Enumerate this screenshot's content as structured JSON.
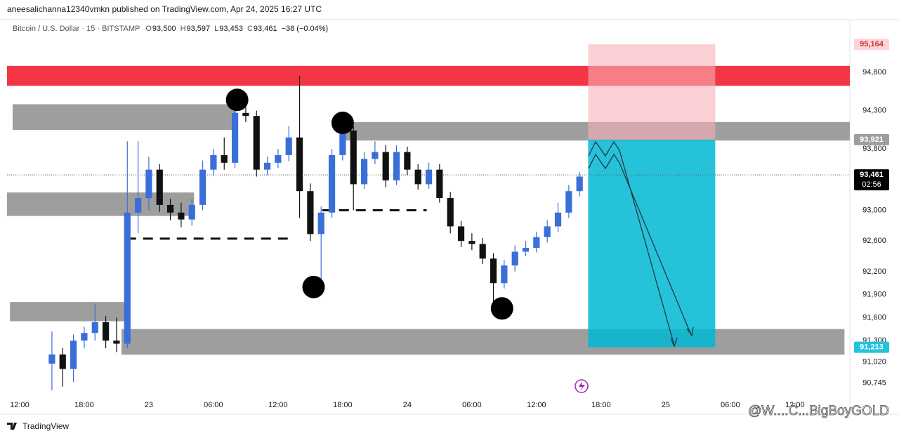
{
  "header": {
    "published": "aneesalichanna12340vmkn published on TradingView.com, Apr 24, 2025 16:27 UTC"
  },
  "footer": {
    "brand": "TradingView"
  },
  "watermark": "@W....C...BigBoyGOLD",
  "chart_data": {
    "type": "candlestick",
    "title": "Bitcoin / U.S. Dollar · 15 · BITSTAMP",
    "ohlc": [
      {
        "key": "O",
        "value": "93,500"
      },
      {
        "key": "H",
        "value": "93,597"
      },
      {
        "key": "L",
        "value": "93,453"
      },
      {
        "key": "C",
        "value": "93,461"
      }
    ],
    "change": "−38 (−0.04%)",
    "up_color": "#3a6fd8",
    "down_color": "#111111",
    "x": [
      3,
      4,
      5,
      6,
      7,
      8,
      9,
      10,
      11,
      12,
      13,
      14,
      15,
      16,
      17,
      18,
      19,
      20,
      21,
      22,
      23,
      24,
      25,
      26,
      27,
      28,
      29,
      30,
      31,
      32,
      33,
      34,
      35,
      36,
      37,
      38,
      39,
      40,
      41,
      42,
      43,
      44,
      45,
      46,
      47,
      48,
      49,
      50,
      51,
      52
    ],
    "open": [
      91000,
      91120,
      90930,
      91300,
      91400,
      91540,
      91300,
      91260,
      92970,
      93160,
      93530,
      93070,
      92970,
      92880,
      93070,
      93530,
      93720,
      93620,
      94270,
      94230,
      93530,
      93620,
      93720,
      93950,
      93250,
      92690,
      92970,
      93720,
      94040,
      93340,
      93670,
      93760,
      93390,
      93760,
      93530,
      93340,
      93530,
      93160,
      92790,
      92600,
      92560,
      92370,
      92050,
      92280,
      92460,
      92510,
      92650,
      92790,
      92970,
      93250
    ],
    "high": [
      91420,
      91200,
      91380,
      91480,
      91780,
      91620,
      91600,
      93900,
      93900,
      93700,
      93600,
      93150,
      93100,
      93150,
      93650,
      93800,
      93950,
      94450,
      94380,
      94300,
      93700,
      93800,
      94100,
      94750,
      93350,
      93050,
      93800,
      94150,
      94100,
      93760,
      93900,
      93850,
      93850,
      93830,
      93600,
      93620,
      93600,
      93240,
      92860,
      92700,
      92640,
      92440,
      92350,
      92540,
      92600,
      92720,
      92870,
      93100,
      93330,
      93500
    ],
    "low": [
      90650,
      90700,
      90760,
      91200,
      91300,
      91200,
      91150,
      91200,
      92700,
      93000,
      92980,
      92870,
      92780,
      92800,
      93000,
      93450,
      93530,
      93550,
      94150,
      93440,
      93460,
      93550,
      93640,
      92900,
      92600,
      92050,
      92900,
      93650,
      93000,
      93280,
      93600,
      93300,
      93330,
      93460,
      93270,
      93280,
      93100,
      92700,
      92520,
      92480,
      92300,
      91780,
      91980,
      92200,
      92400,
      92450,
      92580,
      92720,
      92900,
      93180
    ],
    "close": [
      91120,
      90930,
      91300,
      91400,
      91540,
      91300,
      91260,
      92970,
      93160,
      93530,
      93070,
      92970,
      92880,
      93070,
      93530,
      93720,
      93620,
      94270,
      94230,
      93530,
      93620,
      93720,
      93950,
      93250,
      92690,
      92970,
      93720,
      94040,
      93340,
      93670,
      93760,
      93390,
      93760,
      93530,
      93340,
      93530,
      93160,
      92790,
      92600,
      92560,
      92370,
      92050,
      92280,
      92460,
      92510,
      92650,
      92790,
      92970,
      93250,
      93440
    ],
    "xlim": [
      -1.17,
      77.1
    ],
    "xticks": [
      {
        "value": 0,
        "label": "12:00"
      },
      {
        "value": 6,
        "label": "18:00"
      },
      {
        "value": 12,
        "label": "23"
      },
      {
        "value": 18,
        "label": "06:00"
      },
      {
        "value": 24,
        "label": "12:00"
      },
      {
        "value": 30,
        "label": "18:00"
      },
      {
        "value": 36,
        "label": "24"
      },
      {
        "value": 42,
        "label": "06:00"
      },
      {
        "value": 48,
        "label": "12:00"
      },
      {
        "value": 54,
        "label": "18:00"
      },
      {
        "value": 60,
        "label": "25"
      },
      {
        "value": 66,
        "label": "06:00"
      },
      {
        "value": 72,
        "label": "12:00"
      }
    ],
    "ylim": [
      90569,
      95468
    ],
    "yticks": [
      {
        "value": 94800,
        "label": "94,800"
      },
      {
        "value": 94300,
        "label": "94,300"
      },
      {
        "value": 93800,
        "label": "93,800"
      },
      {
        "value": 93000,
        "label": "93,000"
      },
      {
        "value": 92600,
        "label": "92,600"
      },
      {
        "value": 92200,
        "label": "92,200"
      },
      {
        "value": 91900,
        "label": "91,900"
      },
      {
        "value": 91600,
        "label": "91,600"
      },
      {
        "value": 91300,
        "label": "91,300"
      },
      {
        "value": 91020,
        "label": "91,020"
      },
      {
        "value": 90745,
        "label": "90,745"
      }
    ],
    "grid": false,
    "zones": [
      {
        "x": [
          -1.17,
          77.1
        ],
        "y": [
          94624,
          94883
        ],
        "color": "#f23645"
      },
      {
        "x": [
          -0.65,
          20.1
        ],
        "y": [
          94049,
          94383
        ],
        "color": "#9e9e9e"
      },
      {
        "x": [
          30,
          77.1
        ],
        "y": [
          93910,
          94151
        ],
        "color": "#9e9e9e"
      },
      {
        "x": [
          -1.17,
          16.2
        ],
        "y": [
          92926,
          93232
        ],
        "color": "#9e9e9e"
      },
      {
        "x": [
          -0.9,
          9.8
        ],
        "y": [
          91553,
          91804
        ],
        "color": "#9e9e9e"
      },
      {
        "x": [
          9.46,
          76.6
        ],
        "y": [
          91117,
          91451
        ],
        "color": "#9e9e9e"
      },
      {
        "x": [
          52.8,
          64.6
        ],
        "y": [
          93921,
          95164
        ],
        "color": "rgba(248,175,182,0.6)"
      },
      {
        "x": [
          52.8,
          64.6
        ],
        "y": [
          91213,
          93921
        ],
        "color": "rgba(0,183,211,0.85)"
      }
    ],
    "levels": [
      {
        "x": [
          9.9,
          25.2
        ],
        "y": 92630
      },
      {
        "x": [
          28.1,
          37.8
        ],
        "y": 93000
      }
    ],
    "points": [
      {
        "x": 20.2,
        "y": 94440
      },
      {
        "x": 30,
        "y": 94140
      },
      {
        "x": 27.3,
        "y": 91999
      },
      {
        "x": 44.8,
        "y": 91720
      }
    ],
    "price_labels": [
      {
        "value": 95164,
        "label": "95,164",
        "bg": "#fcd5d9",
        "fg": "#d32f2f"
      },
      {
        "value": 93921,
        "label": "93,921",
        "bg": "#9e9e9e",
        "fg": "#ffffff"
      },
      {
        "value": 93461,
        "label": "93,461",
        "bg": "#000000",
        "fg": "#ffffff",
        "sub": "02:56",
        "line": "dotted"
      },
      {
        "value": 91213,
        "label": "91,213",
        "bg": "#22c3dc",
        "fg": "#ffffff"
      }
    ]
  }
}
